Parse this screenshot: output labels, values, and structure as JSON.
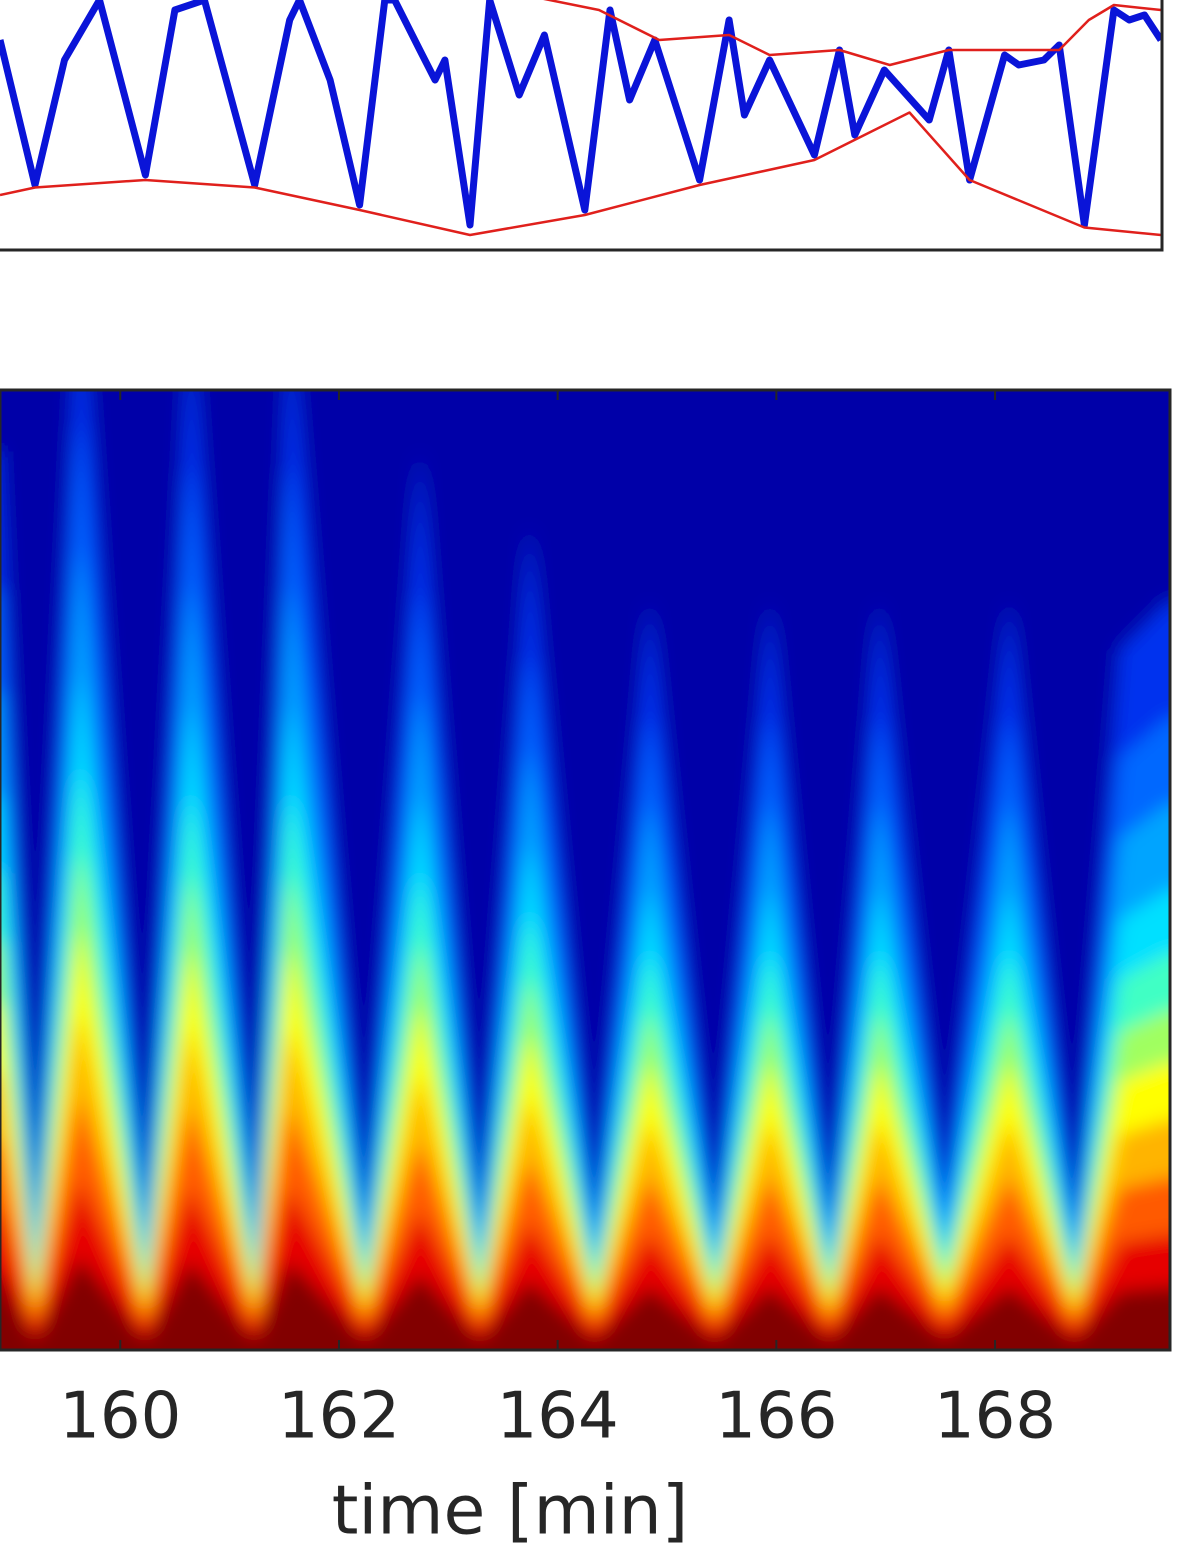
{
  "chart_data": [
    {
      "type": "line",
      "xlim": [
        158.9,
        169.53
      ],
      "ylim": [
        0,
        1
      ],
      "series": [
        {
          "color": "#0a14d8",
          "x": [
            158.9,
            159.22,
            159.49,
            159.81,
            160.23,
            160.5,
            160.77,
            161.23,
            161.55,
            161.64,
            161.92,
            162.19,
            162.42,
            162.51,
            162.74,
            162.88,
            162.97,
            163.2,
            163.38,
            163.65,
            163.88,
            164.25,
            164.48,
            164.66,
            164.89,
            165.3,
            165.57,
            165.71,
            165.94,
            166.35,
            166.58,
            166.72,
            166.99,
            167.4,
            167.58,
            167.77,
            168.09,
            168.22,
            168.45,
            168.59,
            168.82,
            169.09,
            169.23,
            169.37,
            169.52
          ],
          "values": [
            0.84,
            0.26,
            0.76,
            1.0,
            0.3,
            0.96,
            1.0,
            0.26,
            0.92,
            1.0,
            0.68,
            0.18,
            1.0,
            1.0,
            0.8,
            0.68,
            0.76,
            0.1,
            1.0,
            0.62,
            0.86,
            0.16,
            0.96,
            0.6,
            0.84,
            0.28,
            0.92,
            0.54,
            0.76,
            0.38,
            0.8,
            0.46,
            0.72,
            0.52,
            0.8,
            0.28,
            0.78,
            0.74,
            0.76,
            0.82,
            0.1,
            0.96,
            0.92,
            0.94,
            0.84
          ]
        },
        {
          "color": "#e0201c",
          "x": [
            163.02,
            164.38,
            164.93,
            165.57,
            165.94,
            166.58,
            167.04,
            167.58,
            168.09,
            168.59,
            168.86,
            169.09,
            169.52
          ],
          "values": [
            1.08,
            0.96,
            0.84,
            0.86,
            0.78,
            0.8,
            0.74,
            0.8,
            0.8,
            0.8,
            0.92,
            0.98,
            0.96
          ]
        },
        {
          "color": "#e0201c",
          "x": [
            158.9,
            159.22,
            160.23,
            161.23,
            162.19,
            163.2,
            164.25,
            165.3,
            166.35,
            167.22,
            167.77,
            168.82,
            169.52
          ],
          "values": [
            0.22,
            0.25,
            0.28,
            0.25,
            0.16,
            0.06,
            0.14,
            0.26,
            0.36,
            0.55,
            0.28,
            0.09,
            0.06
          ]
        }
      ]
    },
    {
      "type": "contour",
      "xlim": [
        158.9,
        169.6
      ],
      "ylim": [
        0,
        1
      ],
      "x": [
        158.9,
        159.22,
        159.63,
        160.23,
        160.64,
        161.23,
        161.55,
        162.24,
        162.74,
        163.29,
        163.74,
        164.34,
        164.84,
        165.44,
        165.94,
        166.49,
        166.94,
        167.54,
        168.13,
        168.73,
        169.14,
        169.59
      ],
      "values": [
        0.36,
        0.05,
        0.44,
        0.05,
        0.42,
        0.05,
        0.42,
        0.05,
        0.36,
        0.05,
        0.33,
        0.05,
        0.3,
        0.05,
        0.3,
        0.05,
        0.3,
        0.06,
        0.3,
        0.05,
        0.28,
        0.3
      ],
      "xticks": [
        160,
        162,
        164,
        166,
        168
      ],
      "xlabel": "time [min]"
    }
  ]
}
